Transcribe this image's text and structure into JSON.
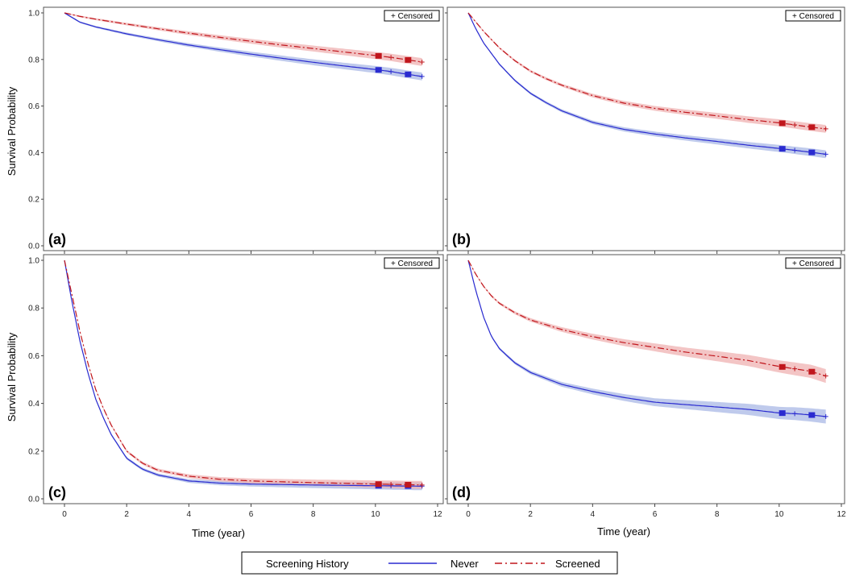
{
  "chart_data": {
    "type": "line",
    "kind": "kaplan-meier survival curves with confidence bands",
    "xlabel": "Time (year)",
    "ylabel": "Survival Probability",
    "xlim": [
      0,
      12
    ],
    "ylim": [
      0,
      1.0
    ],
    "xticks": [
      0,
      2,
      4,
      6,
      8,
      10,
      12
    ],
    "legend": {
      "title": "Screening History",
      "position": "bottom-center",
      "entries": [
        "Never",
        "Screened"
      ]
    },
    "censored_label": "+ Censored",
    "colors": {
      "never": "#2a2bd0",
      "screened": "#c0161c",
      "never_band": "#aab8e6",
      "screened_band": "#efb2b2"
    },
    "panels": [
      {
        "label": "(a)",
        "yticks": [
          "0.0",
          "0.2",
          "0.4",
          "0.6",
          "0.8",
          "1.0"
        ],
        "series": [
          {
            "name": "Never",
            "x": [
              0,
              0.5,
              1,
              2,
              3,
              4,
              5,
              6,
              7,
              8,
              9,
              10,
              10.5,
              11,
              11.5
            ],
            "y": [
              1.0,
              0.96,
              0.94,
              0.91,
              0.885,
              0.862,
              0.842,
              0.823,
              0.805,
              0.788,
              0.772,
              0.757,
              0.748,
              0.737,
              0.727
            ]
          },
          {
            "name": "Screened",
            "x": [
              0,
              0.5,
              1,
              2,
              3,
              4,
              5,
              6,
              7,
              8,
              9,
              10,
              10.5,
              11,
              11.5
            ],
            "y": [
              1.0,
              0.985,
              0.973,
              0.952,
              0.932,
              0.913,
              0.895,
              0.878,
              0.862,
              0.847,
              0.832,
              0.817,
              0.809,
              0.799,
              0.789
            ]
          }
        ]
      },
      {
        "label": "(b)",
        "yticks": [],
        "series": [
          {
            "name": "Never",
            "x": [
              0,
              0.25,
              0.5,
              1,
              1.5,
              2,
              2.5,
              3,
              4,
              5,
              6,
              7,
              8,
              9,
              10,
              10.5,
              11,
              11.5
            ],
            "y": [
              1.0,
              0.93,
              0.87,
              0.78,
              0.71,
              0.655,
              0.615,
              0.58,
              0.53,
              0.5,
              0.48,
              0.463,
              0.448,
              0.432,
              0.418,
              0.41,
              0.402,
              0.393
            ]
          },
          {
            "name": "Screened",
            "x": [
              0,
              0.25,
              0.5,
              1,
              1.5,
              2,
              2.5,
              3,
              4,
              5,
              6,
              7,
              8,
              9,
              10,
              10.5,
              11,
              11.5
            ],
            "y": [
              1.0,
              0.96,
              0.92,
              0.85,
              0.795,
              0.75,
              0.718,
              0.69,
              0.645,
              0.613,
              0.59,
              0.573,
              0.558,
              0.542,
              0.528,
              0.519,
              0.51,
              0.502
            ]
          }
        ]
      },
      {
        "label": "(c)",
        "yticks": [
          "0.0",
          "0.2",
          "0.4",
          "0.6",
          "0.8",
          "1.0"
        ],
        "xticks": [
          "0",
          "2",
          "4",
          "6",
          "8",
          "10",
          "12"
        ],
        "series": [
          {
            "name": "Never",
            "x": [
              0,
              0.25,
              0.5,
              0.75,
              1,
              1.25,
              1.5,
              2,
              2.5,
              3,
              4,
              5,
              6,
              8,
              10,
              11.5
            ],
            "y": [
              1.0,
              0.82,
              0.66,
              0.53,
              0.42,
              0.34,
              0.27,
              0.17,
              0.125,
              0.1,
              0.075,
              0.066,
              0.062,
              0.058,
              0.055,
              0.053
            ]
          },
          {
            "name": "Screened",
            "x": [
              0,
              0.25,
              0.5,
              0.75,
              1,
              1.25,
              1.5,
              2,
              2.5,
              3,
              4,
              5,
              6,
              8,
              10,
              11.5
            ],
            "y": [
              1.0,
              0.85,
              0.7,
              0.57,
              0.46,
              0.38,
              0.31,
              0.2,
              0.15,
              0.12,
              0.095,
              0.082,
              0.075,
              0.068,
              0.062,
              0.058
            ]
          }
        ]
      },
      {
        "label": "(d)",
        "yticks": [],
        "xticks": [
          "0",
          "2",
          "4",
          "6",
          "8",
          "10",
          "12"
        ],
        "series": [
          {
            "name": "Never",
            "x": [
              0,
              0.25,
              0.5,
              0.75,
              1,
              1.5,
              2,
              3,
              4,
              5,
              6,
              7,
              8,
              9,
              10,
              10.5,
              11,
              11.5
            ],
            "y": [
              1.0,
              0.87,
              0.76,
              0.68,
              0.63,
              0.57,
              0.53,
              0.48,
              0.45,
              0.425,
              0.405,
              0.395,
              0.385,
              0.375,
              0.36,
              0.357,
              0.352,
              0.345
            ]
          },
          {
            "name": "Screened",
            "x": [
              0,
              0.25,
              0.5,
              0.75,
              1,
              1.5,
              2,
              3,
              4,
              5,
              6,
              7,
              8,
              9,
              10,
              10.5,
              11,
              11.5
            ],
            "y": [
              1.0,
              0.94,
              0.89,
              0.85,
              0.82,
              0.78,
              0.75,
              0.71,
              0.68,
              0.655,
              0.635,
              0.615,
              0.598,
              0.58,
              0.555,
              0.545,
              0.535,
              0.515
            ]
          }
        ]
      }
    ]
  }
}
